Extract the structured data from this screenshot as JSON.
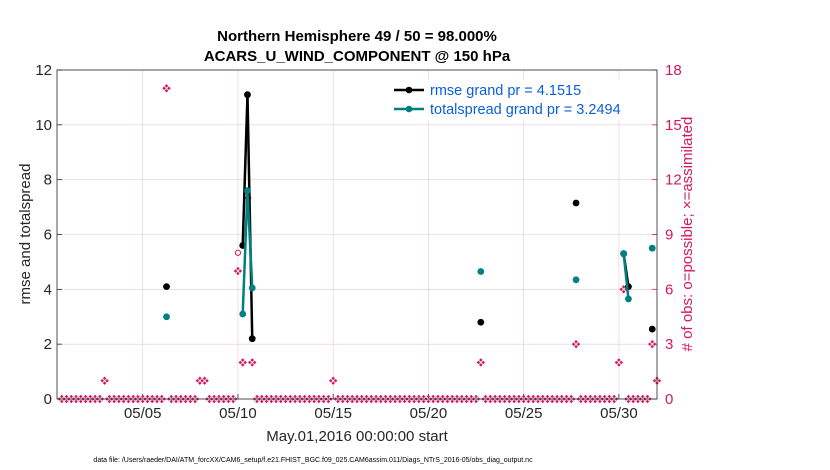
{
  "title_line1": "Northern Hemisphere 49 / 50 = 98.000%",
  "title_line2": "ACARS_U_WIND_COMPONENT @ 150 hPa",
  "footer": "data file: /Users/raeder/DAI/ATM_forcXX/CAM6_setup/f.e21.FHIST_BGC.f09_025.CAM6assim.011/Diags_NTrS_2016-05/obs_diag_output.nc",
  "colors": {
    "rmse": "#000000",
    "spread": "#00807f",
    "obs": "#d6175e",
    "legend_text": "#0b5fd6",
    "grid": "#e8c8d4"
  },
  "chart_data": {
    "type": "line",
    "xlabel": "May.01,2016 00:00:00 start",
    "ylabel_left": "rmse and totalspread",
    "ylabel_right": "# of obs: o=possible; ×=assimilated",
    "xlim": [
      0.5,
      32
    ],
    "ylim_left": [
      0,
      12
    ],
    "ylim_right": [
      0,
      18
    ],
    "x_ticks": [
      5,
      10,
      15,
      20,
      25,
      30
    ],
    "x_tick_labels": [
      "05/05",
      "05/10",
      "05/15",
      "05/20",
      "05/25",
      "05/30"
    ],
    "y_ticks_left": [
      0,
      2,
      4,
      6,
      8,
      10,
      12
    ],
    "y_ticks_right": [
      0,
      3,
      6,
      9,
      12,
      15,
      18
    ],
    "grid": true,
    "legend_position": "top-right",
    "series": [
      {
        "name": "rmse grand pr = 4.1515",
        "axis": "left",
        "points": [
          [
            6.25,
            4.1
          ],
          [
            10.25,
            5.6
          ],
          [
            10.5,
            11.1
          ],
          [
            10.75,
            2.2
          ],
          [
            22.75,
            2.8
          ],
          [
            27.75,
            7.15
          ],
          [
            30.25,
            5.3
          ],
          [
            30.5,
            4.1
          ],
          [
            31.75,
            2.55
          ]
        ]
      },
      {
        "name": "totalspread grand pr = 3.2494",
        "axis": "left",
        "points": [
          [
            6.25,
            3.0
          ],
          [
            10.25,
            3.1
          ],
          [
            10.5,
            7.6
          ],
          [
            10.75,
            4.05
          ],
          [
            22.75,
            4.65
          ],
          [
            27.75,
            4.35
          ],
          [
            30.25,
            5.3
          ],
          [
            30.5,
            3.65
          ],
          [
            31.75,
            5.5
          ]
        ]
      }
    ],
    "obs_assimilated": {
      "axis": "right",
      "x_start": 0.75,
      "x_step": 0.25,
      "nonzero": {
        "3.0": 1,
        "6.25": 17,
        "8.0": 1,
        "8.25": 1,
        "10.0": 7,
        "10.25": 2,
        "10.5": 11,
        "10.75": 2,
        "15.0": 1,
        "22.75": 2,
        "27.75": 3,
        "30.0": 2,
        "30.25": 6,
        "31.75": 3,
        "32.0": 1
      },
      "count": 126
    },
    "obs_possible": [
      [
        10.0,
        8.0
      ]
    ]
  }
}
